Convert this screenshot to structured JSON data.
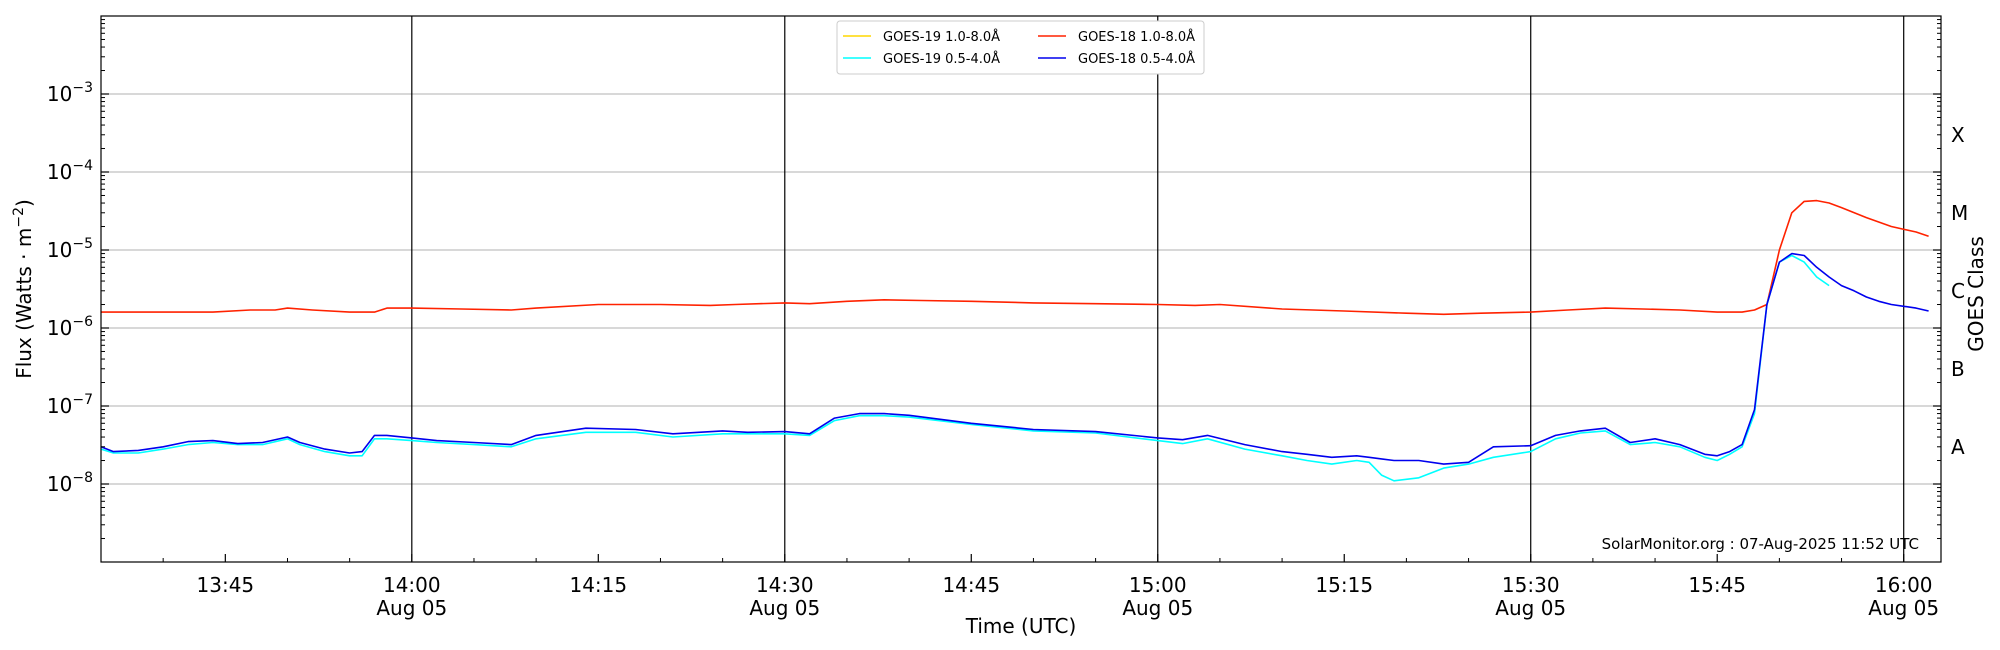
{
  "chart_data": {
    "type": "line",
    "title": "",
    "xlabel": "Time (UTC)",
    "ylabel": "Flux (Watts · m",
    "ylabel_sup": "−2",
    "ylabel_close": ")",
    "right_ylabel": "GOES Class",
    "y_scale": "log",
    "ylim": [
      1e-09,
      0.01
    ],
    "xlim": [
      "13:35",
      "16:03"
    ],
    "grid": "horizontal at decades",
    "legend_position": "top-center",
    "credit": "SolarMonitor.org : 07-Aug-2025 11:52 UTC",
    "y_ticks": [
      {
        "value": 1e-08,
        "base": "10",
        "exp": "−8"
      },
      {
        "value": 1e-07,
        "base": "10",
        "exp": "−7"
      },
      {
        "value": 1e-06,
        "base": "10",
        "exp": "−6"
      },
      {
        "value": 1e-05,
        "base": "10",
        "exp": "−5"
      },
      {
        "value": 0.0001,
        "base": "10",
        "exp": "−4"
      },
      {
        "value": 0.001,
        "base": "10",
        "exp": "−3"
      }
    ],
    "x_ticks": [
      {
        "time": "13:45",
        "label": "13:45",
        "date": ""
      },
      {
        "time": "14:00",
        "label": "14:00",
        "date": "Aug 05"
      },
      {
        "time": "14:15",
        "label": "14:15",
        "date": ""
      },
      {
        "time": "14:30",
        "label": "14:30",
        "date": "Aug 05"
      },
      {
        "time": "14:45",
        "label": "14:45",
        "date": ""
      },
      {
        "time": "15:00",
        "label": "15:00",
        "date": "Aug 05"
      },
      {
        "time": "15:15",
        "label": "15:15",
        "date": ""
      },
      {
        "time": "15:30",
        "label": "15:30",
        "date": "Aug 05"
      },
      {
        "time": "15:45",
        "label": "15:45",
        "date": ""
      },
      {
        "time": "16:00",
        "label": "16:00",
        "date": "Aug 05"
      }
    ],
    "vertical_lines": [
      "14:00",
      "14:30",
      "15:00",
      "15:30",
      "16:00"
    ],
    "class_labels": [
      {
        "label": "X",
        "value": 0.0003
      },
      {
        "label": "M",
        "value": 3e-05
      },
      {
        "label": "C",
        "value": 3e-06
      },
      {
        "label": "B",
        "value": 3e-07
      },
      {
        "label": "A",
        "value": 3e-08
      }
    ],
    "series": [
      {
        "name": "GOES-19 1.0-8.0Å",
        "color": "#ffd700",
        "x": [],
        "values": []
      },
      {
        "name": "GOES-18 1.0-8.0Å",
        "color": "#ff2200",
        "x": [
          "13:35",
          "13:38",
          "13:41",
          "13:44",
          "13:47",
          "13:49",
          "13:50",
          "13:52",
          "13:55",
          "13:57",
          "13:58",
          "14:00",
          "14:04",
          "14:08",
          "14:10",
          "14:15",
          "14:20",
          "14:24",
          "14:26",
          "14:30",
          "14:32",
          "14:35",
          "14:38",
          "14:41",
          "14:45",
          "14:50",
          "14:55",
          "15:00",
          "15:03",
          "15:05",
          "15:10",
          "15:15",
          "15:20",
          "15:23",
          "15:26",
          "15:30",
          "15:33",
          "15:36",
          "15:39",
          "15:42",
          "15:45",
          "15:47",
          "15:48",
          "15:49",
          "15:50",
          "15:51",
          "15:52",
          "15:53",
          "15:54",
          "15:55",
          "15:57",
          "15:59",
          "16:01",
          "16:02"
        ],
        "values": [
          1.6e-06,
          1.6e-06,
          1.6e-06,
          1.6e-06,
          1.7e-06,
          1.7e-06,
          1.8e-06,
          1.7e-06,
          1.6e-06,
          1.6e-06,
          1.8e-06,
          1.8e-06,
          1.75e-06,
          1.7e-06,
          1.8e-06,
          2e-06,
          2e-06,
          1.95e-06,
          2e-06,
          2.1e-06,
          2.05e-06,
          2.2e-06,
          2.3e-06,
          2.25e-06,
          2.2e-06,
          2.1e-06,
          2.05e-06,
          2e-06,
          1.95e-06,
          2e-06,
          1.75e-06,
          1.65e-06,
          1.55e-06,
          1.5e-06,
          1.55e-06,
          1.6e-06,
          1.7e-06,
          1.8e-06,
          1.75e-06,
          1.7e-06,
          1.6e-06,
          1.6e-06,
          1.7e-06,
          2e-06,
          1e-05,
          3e-05,
          4.2e-05,
          4.3e-05,
          4e-05,
          3.5e-05,
          2.6e-05,
          2e-05,
          1.7e-05,
          1.5e-05
        ]
      },
      {
        "name": "GOES-19 0.5-4.0Å",
        "color": "#00ffff",
        "x": [
          "13:35",
          "13:36",
          "13:38",
          "13:40",
          "13:42",
          "13:44",
          "13:46",
          "13:48",
          "13:50",
          "13:51",
          "13:53",
          "13:55",
          "13:56",
          "13:57",
          "13:58",
          "14:00",
          "14:02",
          "14:05",
          "14:08",
          "14:10",
          "14:14",
          "14:18",
          "14:21",
          "14:25",
          "14:27",
          "14:30",
          "14:32",
          "14:34",
          "14:36",
          "14:38",
          "14:40",
          "14:45",
          "14:50",
          "14:55",
          "15:00",
          "15:02",
          "15:04",
          "15:07",
          "15:10",
          "15:12",
          "15:14",
          "15:16",
          "15:17",
          "15:18",
          "15:19",
          "15:21",
          "15:23",
          "15:25",
          "15:27",
          "15:30",
          "15:32",
          "15:34",
          "15:36",
          "15:38",
          "15:40",
          "15:42",
          "15:44",
          "15:45",
          "15:46",
          "15:47",
          "15:48",
          "15:49",
          "15:50",
          "15:51",
          "15:52",
          "15:53",
          "15:54"
        ],
        "values": [
          2.8e-08,
          2.5e-08,
          2.5e-08,
          2.8e-08,
          3.2e-08,
          3.4e-08,
          3.2e-08,
          3.2e-08,
          3.8e-08,
          3.2e-08,
          2.6e-08,
          2.3e-08,
          2.3e-08,
          3.8e-08,
          3.8e-08,
          3.6e-08,
          3.4e-08,
          3.2e-08,
          3e-08,
          3.8e-08,
          4.6e-08,
          4.6e-08,
          4e-08,
          4.4e-08,
          4.4e-08,
          4.4e-08,
          4.2e-08,
          6.5e-08,
          7.5e-08,
          7.5e-08,
          7.2e-08,
          5.8e-08,
          4.8e-08,
          4.5e-08,
          3.6e-08,
          3.3e-08,
          3.8e-08,
          2.8e-08,
          2.3e-08,
          2e-08,
          1.8e-08,
          2e-08,
          1.9e-08,
          1.3e-08,
          1.1e-08,
          1.2e-08,
          1.6e-08,
          1.8e-08,
          2.2e-08,
          2.6e-08,
          3.8e-08,
          4.5e-08,
          4.8e-08,
          3.2e-08,
          3.4e-08,
          3e-08,
          2.2e-08,
          2e-08,
          2.4e-08,
          3e-08,
          8e-08,
          2e-06,
          7e-06,
          8.5e-06,
          7e-06,
          4.5e-06,
          3.5e-06
        ]
      },
      {
        "name": "GOES-18 0.5-4.0Å",
        "color": "#0000ee",
        "x": [
          "13:35",
          "13:36",
          "13:38",
          "13:40",
          "13:42",
          "13:44",
          "13:46",
          "13:48",
          "13:50",
          "13:51",
          "13:53",
          "13:55",
          "13:56",
          "13:57",
          "13:58",
          "14:00",
          "14:02",
          "14:05",
          "14:08",
          "14:10",
          "14:14",
          "14:18",
          "14:21",
          "14:25",
          "14:27",
          "14:30",
          "14:32",
          "14:34",
          "14:36",
          "14:38",
          "14:40",
          "14:45",
          "14:50",
          "14:55",
          "15:00",
          "15:02",
          "15:04",
          "15:07",
          "15:10",
          "15:12",
          "15:14",
          "15:16",
          "15:17",
          "15:18",
          "15:19",
          "15:21",
          "15:23",
          "15:25",
          "15:27",
          "15:30",
          "15:32",
          "15:34",
          "15:36",
          "15:38",
          "15:40",
          "15:42",
          "15:44",
          "15:45",
          "15:46",
          "15:47",
          "15:48",
          "15:49",
          "15:50",
          "15:51",
          "15:52",
          "15:53",
          "15:54",
          "15:55",
          "15:56",
          "15:57",
          "15:58",
          "15:59",
          "16:00",
          "16:01",
          "16:02"
        ],
        "values": [
          3e-08,
          2.6e-08,
          2.7e-08,
          3e-08,
          3.5e-08,
          3.6e-08,
          3.3e-08,
          3.4e-08,
          4e-08,
          3.4e-08,
          2.8e-08,
          2.5e-08,
          2.6e-08,
          4.2e-08,
          4.2e-08,
          3.9e-08,
          3.6e-08,
          3.4e-08,
          3.2e-08,
          4.2e-08,
          5.2e-08,
          5e-08,
          4.4e-08,
          4.8e-08,
          4.6e-08,
          4.7e-08,
          4.4e-08,
          7e-08,
          8e-08,
          8e-08,
          7.6e-08,
          6e-08,
          5e-08,
          4.7e-08,
          3.9e-08,
          3.7e-08,
          4.2e-08,
          3.2e-08,
          2.6e-08,
          2.4e-08,
          2.2e-08,
          2.3e-08,
          2.2e-08,
          2.1e-08,
          2e-08,
          2e-08,
          1.8e-08,
          1.9e-08,
          3e-08,
          3.1e-08,
          4.2e-08,
          4.8e-08,
          5.2e-08,
          3.4e-08,
          3.8e-08,
          3.2e-08,
          2.4e-08,
          2.3e-08,
          2.6e-08,
          3.2e-08,
          9e-08,
          2e-06,
          7e-06,
          9e-06,
          8.5e-06,
          6e-06,
          4.5e-06,
          3.5e-06,
          3e-06,
          2.5e-06,
          2.2e-06,
          2e-06,
          1.9e-06,
          1.8e-06,
          1.65e-06
        ]
      }
    ]
  }
}
